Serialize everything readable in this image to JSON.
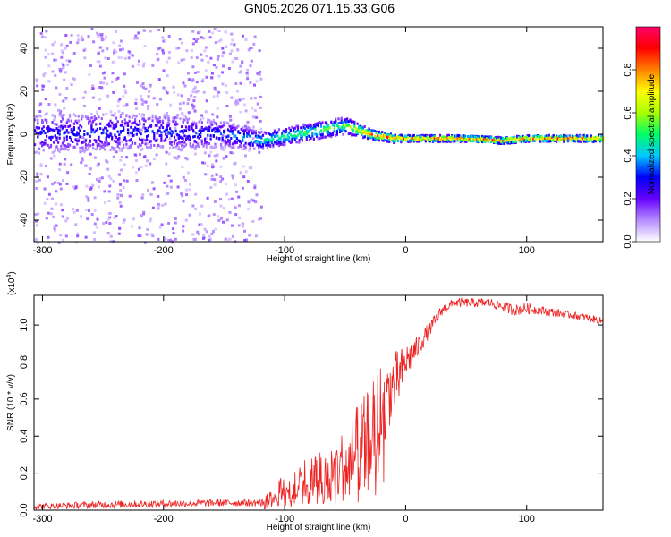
{
  "figure_title": "GN05.2026.071.15.33.G06",
  "chart_data": [
    {
      "type": "heatmap",
      "panel": "top",
      "title": "GN05.2026.071.15.33.G06",
      "xlabel": "Height of straight line (km)",
      "ylabel": "Frequency (Hz)",
      "xlim": [
        -307,
        163
      ],
      "ylim": [
        -50,
        50
      ],
      "x_ticks": [
        -300,
        -200,
        -100,
        0,
        100
      ],
      "x_tick_labels": [
        "-300",
        "-200",
        "-100",
        "0",
        "100"
      ],
      "y_ticks": [
        -40,
        -20,
        0,
        20,
        40
      ],
      "y_tick_labels": [
        "-40",
        "-20",
        "0",
        "20",
        "40"
      ],
      "colorbar": {
        "label": "Normalized spectral amplitude",
        "range": [
          0,
          1
        ],
        "ticks": [
          0,
          0.2,
          0.4,
          0.6,
          0.8
        ],
        "tick_labels": [
          "0.0",
          "0.2",
          "0.4",
          "0.6",
          "0.8"
        ],
        "colors": [
          "#ffffff",
          "#b58cff",
          "#6600ff",
          "#0000ff",
          "#00c8ff",
          "#00ff66",
          "#aaff00",
          "#ffff00",
          "#ff8000",
          "#ff0000",
          "#ff0066"
        ]
      },
      "ridge": {
        "x": [
          -307,
          -250,
          -200,
          -150,
          -120,
          -100,
          -80,
          -60,
          -50,
          -40,
          -30,
          -20,
          -10,
          0,
          20,
          50,
          80,
          100,
          130,
          163
        ],
        "frequency": [
          0,
          1,
          1,
          0,
          -3,
          -1,
          1,
          3,
          4,
          2,
          0,
          -1,
          -2,
          -2,
          -2,
          -2,
          -3,
          -2,
          -2,
          -2
        ],
        "amplitude": [
          0.3,
          0.32,
          0.32,
          0.35,
          0.5,
          0.52,
          0.55,
          0.55,
          0.58,
          0.72,
          0.82,
          0.85,
          0.85,
          0.85,
          0.88,
          0.88,
          0.95,
          0.88,
          0.88,
          0.86
        ],
        "spread_hz": [
          9,
          9,
          8,
          6,
          4,
          4,
          4,
          4,
          4,
          3,
          2.5,
          2,
          2,
          1.5,
          1.5,
          1.5,
          1.5,
          1.5,
          1.5,
          1.5
        ]
      }
    },
    {
      "type": "line",
      "panel": "bottom",
      "xlabel": "Height of straight line (km)",
      "ylabel": "SNR (10 * v/v)",
      "y_multiplier_label": "(x10",
      "y_multiplier_exp": "4",
      "y_multiplier_close": ")",
      "color": "#ee2222",
      "xlim": [
        -307,
        163
      ],
      "ylim": [
        0,
        1.16
      ],
      "x_ticks": [
        -300,
        -200,
        -100,
        0,
        100
      ],
      "x_tick_labels": [
        "-300",
        "-200",
        "-100",
        "0",
        "100"
      ],
      "y_ticks": [
        0,
        0.2,
        0.4,
        0.6,
        0.8,
        1.0
      ],
      "y_tick_labels": [
        "0.0",
        "0.2",
        "0.4",
        "0.6",
        "0.8",
        "1.0"
      ],
      "series": [
        {
          "name": "SNR",
          "x": [
            -307,
            -250,
            -200,
            -150,
            -120,
            -110,
            -100,
            -90,
            -80,
            -70,
            -60,
            -50,
            -40,
            -30,
            -25,
            -20,
            -15,
            -10,
            -5,
            0,
            10,
            20,
            30,
            40,
            50,
            60,
            70,
            80,
            90,
            100,
            110,
            120,
            130,
            140,
            150,
            163
          ],
          "y": [
            0.02,
            0.03,
            0.035,
            0.04,
            0.04,
            0.06,
            0.12,
            0.15,
            0.16,
            0.18,
            0.2,
            0.25,
            0.32,
            0.38,
            0.5,
            0.55,
            0.62,
            0.68,
            0.72,
            0.8,
            0.88,
            0.98,
            1.08,
            1.12,
            1.12,
            1.12,
            1.12,
            1.1,
            1.08,
            1.09,
            1.08,
            1.07,
            1.06,
            1.05,
            1.04,
            1.02
          ],
          "noise": [
            0.015,
            0.02,
            0.02,
            0.02,
            0.02,
            0.05,
            0.1,
            0.12,
            0.14,
            0.16,
            0.17,
            0.2,
            0.25,
            0.28,
            0.25,
            0.25,
            0.2,
            0.18,
            0.15,
            0.1,
            0.06,
            0.04,
            0.03,
            0.025,
            0.025,
            0.025,
            0.025,
            0.03,
            0.03,
            0.03,
            0.025,
            0.025,
            0.02,
            0.02,
            0.02,
            0.02
          ]
        }
      ]
    }
  ]
}
